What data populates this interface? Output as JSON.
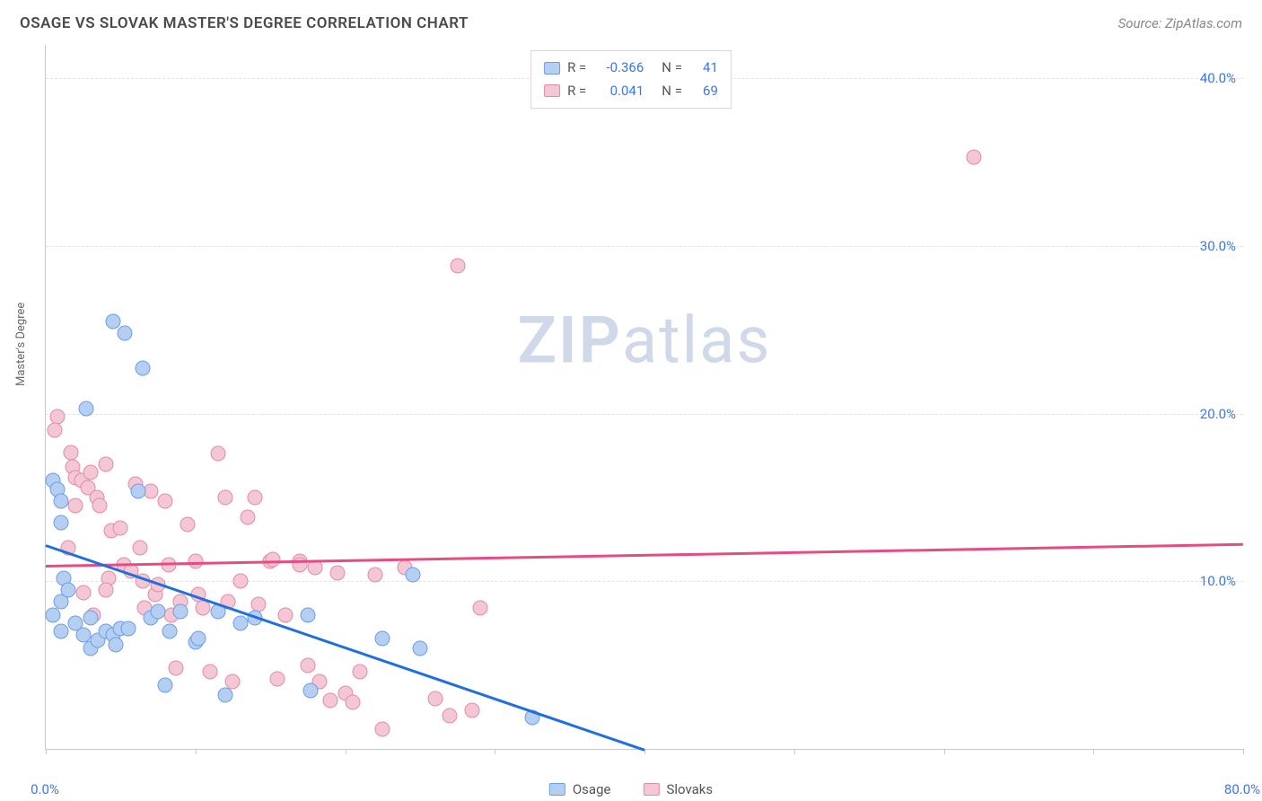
{
  "header": {
    "title": "OSAGE VS SLOVAK MASTER'S DEGREE CORRELATION CHART",
    "source": "Source: ZipAtlas.com"
  },
  "watermark": {
    "zip": "ZIP",
    "atlas": "atlas"
  },
  "chart": {
    "type": "scatter",
    "ylabel": "Master's Degree",
    "xlim": [
      0,
      80
    ],
    "ylim": [
      0,
      42
    ],
    "x_ticks": [
      0,
      10,
      20,
      30,
      40,
      50,
      60,
      70,
      80
    ],
    "x_tick_labels": {
      "0": "0.0%",
      "80": "80.0%"
    },
    "y_gridlines": [
      10,
      20,
      30,
      40
    ],
    "y_tick_labels": {
      "10": "10.0%",
      "20": "20.0%",
      "30": "30.0%",
      "40": "40.0%"
    },
    "axis_label_color": "#3b78e7",
    "axis_label_fontsize": 15,
    "title_color": "#4a4a4a",
    "grid_color": "#e4e4e4",
    "series": {
      "osage": {
        "label": "Osage",
        "fill_color": "#b5cff2",
        "stroke_color": "#6d9de8",
        "reg_color": "#1f6fe0",
        "R": "-0.366",
        "N": "41",
        "regression": {
          "x1": 0,
          "y1": 12.2,
          "x2": 40,
          "y2": 0
        },
        "points": [
          [
            0.5,
            16
          ],
          [
            0.8,
            15.5
          ],
          [
            1,
            14.8
          ],
          [
            1,
            13.5
          ],
          [
            1.2,
            10.2
          ],
          [
            1,
            8.8
          ],
          [
            1.5,
            9.5
          ],
          [
            0.5,
            8
          ],
          [
            1,
            7
          ],
          [
            2,
            7.5
          ],
          [
            2.5,
            6.8
          ],
          [
            3,
            6
          ],
          [
            3,
            7.8
          ],
          [
            3.5,
            6.5
          ],
          [
            4,
            7
          ],
          [
            4.5,
            6.8
          ],
          [
            4.7,
            6.2
          ],
          [
            5,
            7.2
          ],
          [
            5.5,
            7.2
          ],
          [
            6.2,
            15.4
          ],
          [
            7,
            7.8
          ],
          [
            7.5,
            8.2
          ],
          [
            8,
            3.8
          ],
          [
            8.3,
            7
          ],
          [
            9,
            8.2
          ],
          [
            10,
            6.4
          ],
          [
            10.2,
            6.6
          ],
          [
            11.5,
            8.2
          ],
          [
            12,
            3.2
          ],
          [
            13,
            7.5
          ],
          [
            14,
            7.8
          ],
          [
            17.5,
            8.0
          ],
          [
            17.7,
            3.5
          ],
          [
            22.5,
            6.6
          ],
          [
            24.5,
            10.4
          ],
          [
            25,
            6.0
          ],
          [
            32.5,
            1.9
          ],
          [
            4.5,
            25.5
          ],
          [
            6.5,
            22.7
          ],
          [
            2.7,
            20.3
          ],
          [
            5.3,
            24.8
          ]
        ]
      },
      "slovaks": {
        "label": "Slovaks",
        "fill_color": "#f4c7d4",
        "stroke_color": "#e48ba7",
        "reg_color": "#e84b84",
        "R": "0.041",
        "N": "69",
        "regression": {
          "x1": 0,
          "y1": 11.0,
          "x2": 80,
          "y2": 12.3
        },
        "points": [
          [
            0.8,
            19.8
          ],
          [
            0.6,
            19.0
          ],
          [
            1.7,
            17.7
          ],
          [
            1.8,
            16.8
          ],
          [
            2,
            16.2
          ],
          [
            2.4,
            16.0
          ],
          [
            2.8,
            15.6
          ],
          [
            3,
            16.5
          ],
          [
            3.4,
            15.0
          ],
          [
            3.6,
            14.5
          ],
          [
            4,
            17.0
          ],
          [
            4.4,
            13.0
          ],
          [
            5,
            13.2
          ],
          [
            5.2,
            11.0
          ],
          [
            5.7,
            10.6
          ],
          [
            6,
            15.8
          ],
          [
            6.3,
            12.0
          ],
          [
            6.5,
            10.0
          ],
          [
            6.6,
            8.4
          ],
          [
            7,
            15.4
          ],
          [
            7.3,
            9.2
          ],
          [
            7.5,
            9.8
          ],
          [
            8,
            14.8
          ],
          [
            8.2,
            11.0
          ],
          [
            8.4,
            8.0
          ],
          [
            8.7,
            4.8
          ],
          [
            9,
            8.8
          ],
          [
            9.5,
            13.4
          ],
          [
            10,
            11.2
          ],
          [
            10.2,
            9.2
          ],
          [
            10.5,
            8.4
          ],
          [
            11,
            4.6
          ],
          [
            11.5,
            17.6
          ],
          [
            12,
            15.0
          ],
          [
            12.2,
            8.8
          ],
          [
            12.5,
            4.0
          ],
          [
            13,
            10.0
          ],
          [
            13.5,
            13.8
          ],
          [
            14,
            15.0
          ],
          [
            14.2,
            8.6
          ],
          [
            15,
            11.2
          ],
          [
            15.2,
            11.3
          ],
          [
            15.5,
            4.2
          ],
          [
            16,
            8.0
          ],
          [
            17,
            11.2
          ],
          [
            17,
            11.0
          ],
          [
            17.5,
            5.0
          ],
          [
            18,
            10.8
          ],
          [
            18.3,
            4.0
          ],
          [
            19,
            2.9
          ],
          [
            19.5,
            10.5
          ],
          [
            20,
            3.3
          ],
          [
            20.5,
            2.8
          ],
          [
            21,
            4.6
          ],
          [
            22,
            10.4
          ],
          [
            22.5,
            1.2
          ],
          [
            24,
            10.8
          ],
          [
            26,
            3.0
          ],
          [
            27,
            2.0
          ],
          [
            28.5,
            2.3
          ],
          [
            29,
            8.4
          ],
          [
            62,
            35.3
          ],
          [
            27.5,
            28.8
          ],
          [
            4.2,
            10.2
          ],
          [
            4.0,
            9.5
          ],
          [
            3.2,
            8.0
          ],
          [
            2.5,
            9.3
          ],
          [
            1.5,
            12.0
          ],
          [
            2.0,
            14.5
          ]
        ]
      }
    },
    "bottom_legend": [
      "osage",
      "slovaks"
    ]
  }
}
